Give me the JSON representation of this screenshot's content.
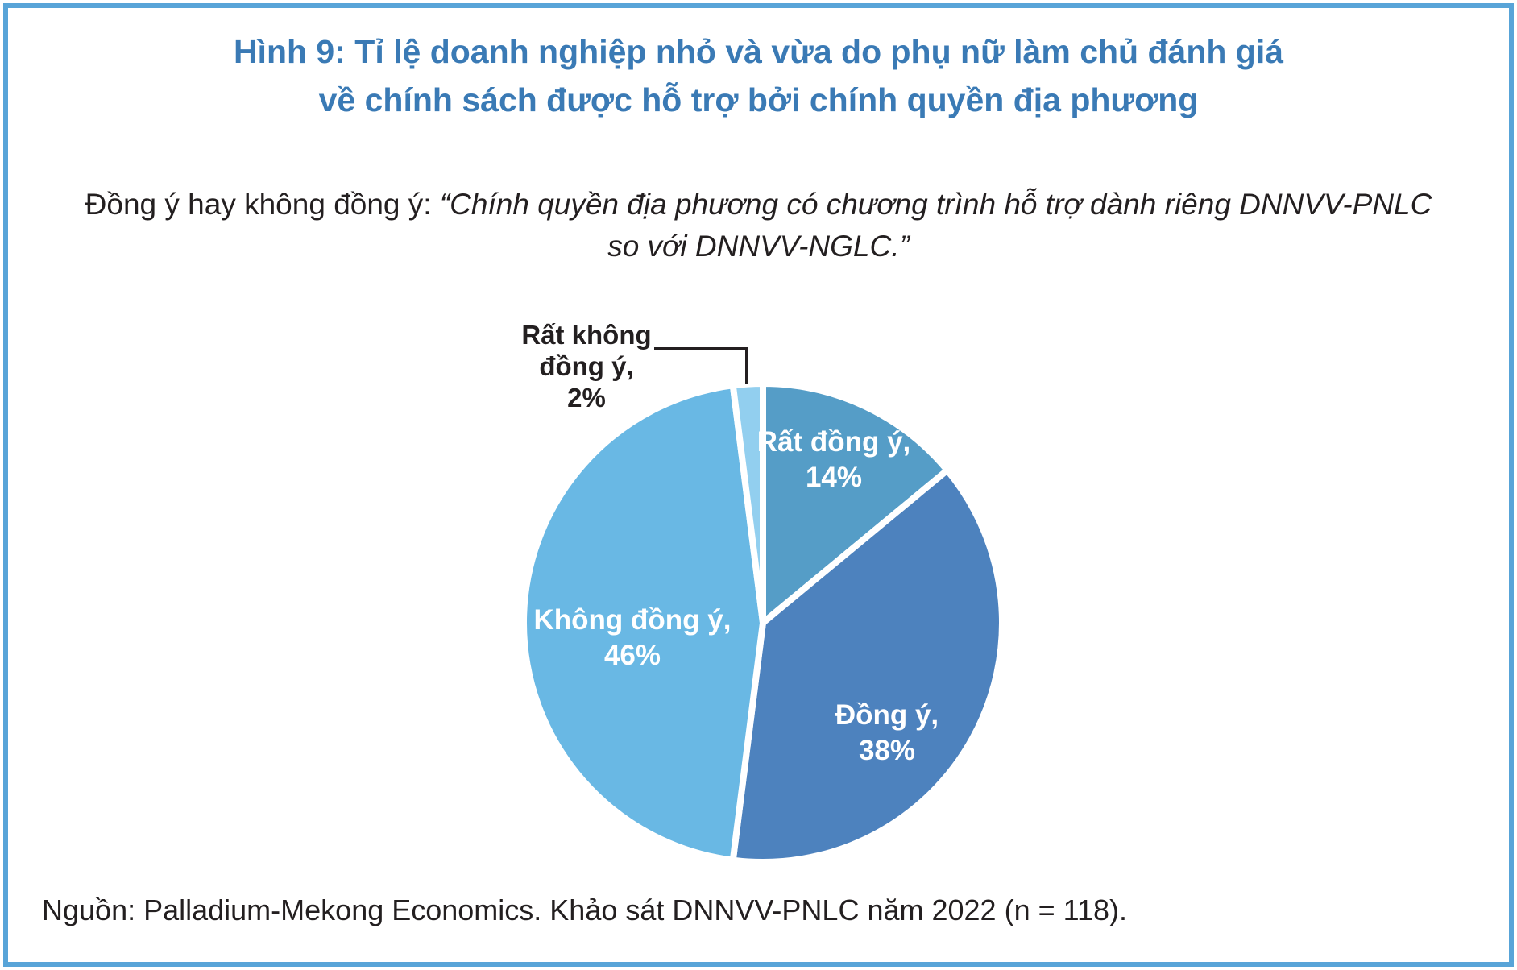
{
  "header": {
    "title_line1": "Hình 9: Tỉ lệ doanh nghiệp nhỏ và vừa do phụ nữ làm chủ đánh giá",
    "title_line2": "về chính sách được hỗ trợ bởi chính quyền địa phương"
  },
  "subtitle": {
    "prefix": "Đồng ý hay không đồng ý: ",
    "quote_line1": "“Chính quyền địa phương có chương trình hỗ trợ dành riêng DNNVV-PNLC",
    "quote_line2": "so với DNNVV-NGLC.”"
  },
  "chart_data": {
    "type": "pie",
    "title": "Hình 9: Tỉ lệ doanh nghiệp nhỏ và vừa do phụ nữ làm chủ đánh giá về chính sách được hỗ trợ bởi chính quyền địa phương",
    "question": "Đồng ý hay không đồng ý: “Chính quyền địa phương có chương trình hỗ trợ dành riêng DNNVV-PNLC so với DNNVV-NGLC.”",
    "categories": [
      "Rất đồng ý",
      "Đồng ý",
      "Không đồng ý",
      "Rất không đồng ý"
    ],
    "values": [
      14,
      38,
      46,
      2
    ],
    "unit": "%",
    "colors": [
      "#559DC7",
      "#4D82BE",
      "#69B8E4",
      "#92CFEF"
    ],
    "slice_ids": [
      "rat-dong-y",
      "dong-y",
      "khong-dong-y",
      "rat-khong-dong-y"
    ],
    "start_angle_deg": -90,
    "direction": "clockwise",
    "gap_stroke_color": "#FFFFFF",
    "legend_position": "labels-on-slices",
    "slice_labels": {
      "rat_dong_y": {
        "line1": "Rất đồng ý,",
        "line2": "14%"
      },
      "dong_y": {
        "line1": "Đồng ý,",
        "line2": "38%"
      },
      "khong_dong_y": {
        "line1": "Không đồng ý,",
        "line2": "46%"
      },
      "rat_khong_dong_y": {
        "line1": "Rất không",
        "line2": "đồng ý,",
        "line3": "2%"
      }
    },
    "source": "Nguồn: Palladium-Mekong Economics. Khảo sát DNNVV-PNLC năm 2022 (n = 118)."
  },
  "colors": {
    "frame_border": "#58A4D8",
    "title_text": "#3A7AB5",
    "body_text": "#231F20",
    "slice_label_text": "#FFFFFF"
  }
}
